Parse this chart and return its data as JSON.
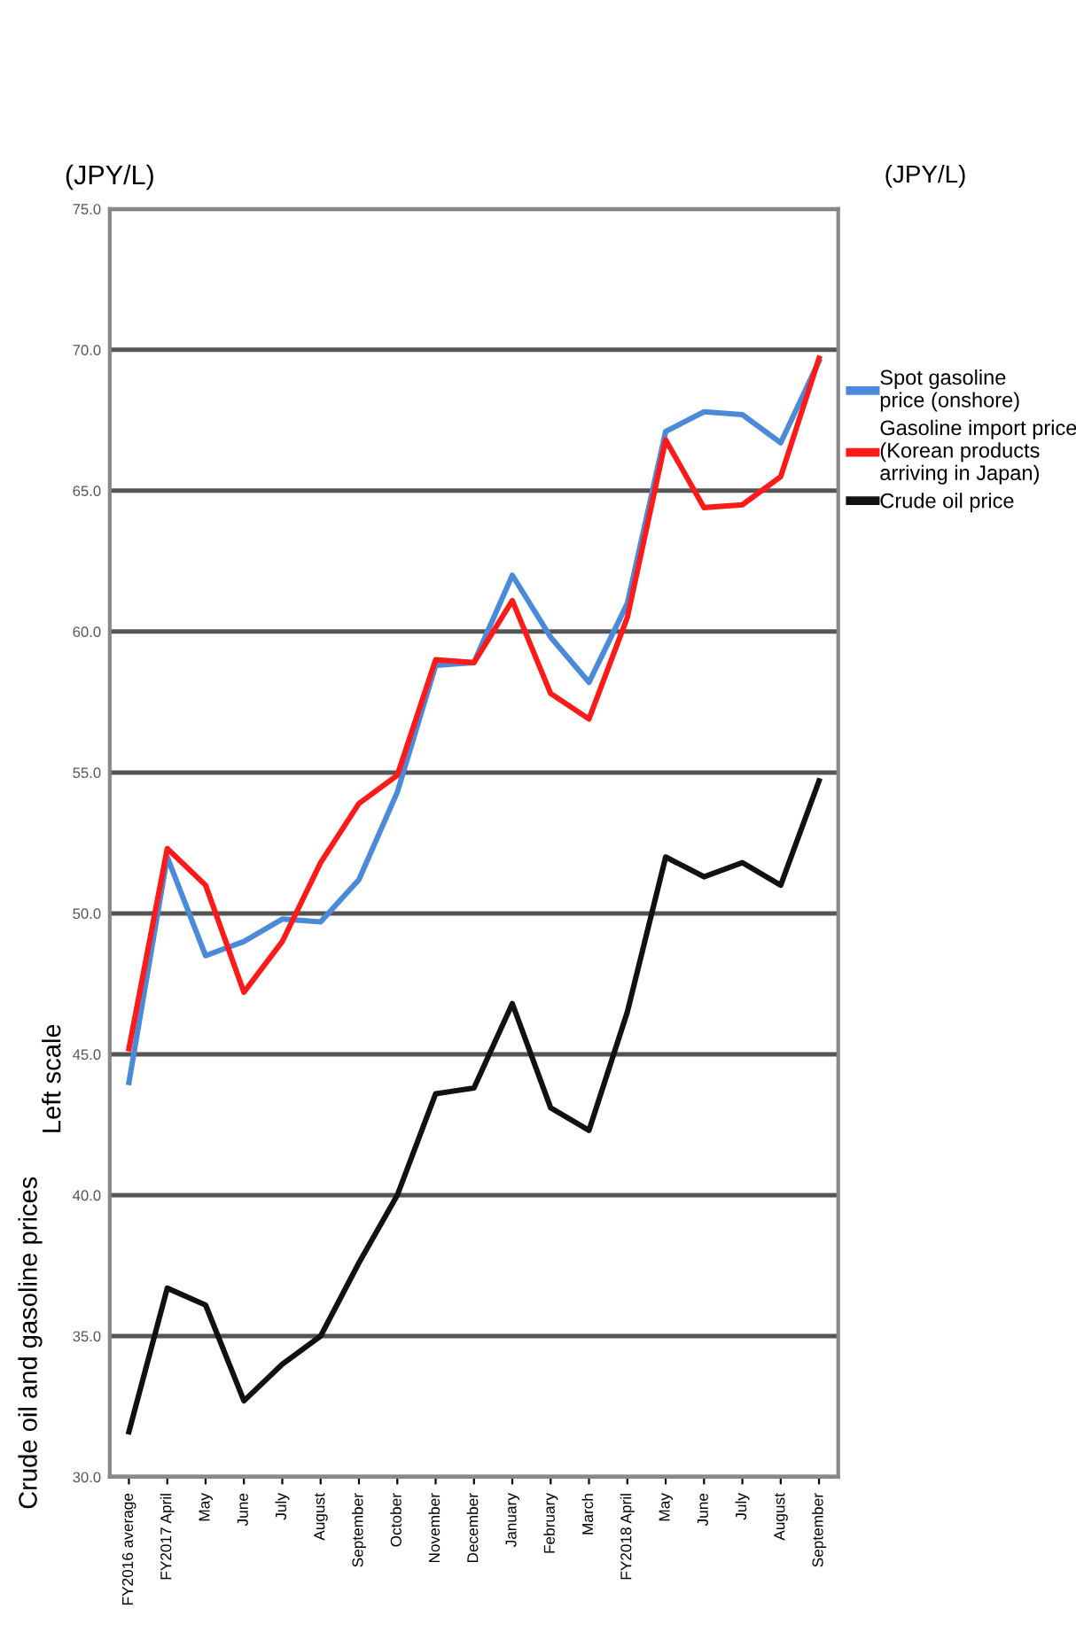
{
  "chart_data": {
    "type": "line",
    "ylabel": "(JPY/L)",
    "annotations": [
      "Crude oil and gasoline prices",
      "Left scale",
      "(JPY/L)"
    ],
    "categories": [
      "FY2016 average",
      "FY2017 April",
      "May",
      "June",
      "July",
      "August",
      "September",
      "October",
      "November",
      "December",
      "January",
      "February",
      "March",
      "FY2018 April",
      "May",
      "June",
      "July",
      "August",
      "September"
    ],
    "series": [
      {
        "name": "Spot gasoline\nprice (onshore)",
        "color": "#4a8ad8",
        "values": [
          44.0,
          52.0,
          48.5,
          49.0,
          49.8,
          49.7,
          51.2,
          54.3,
          58.8,
          58.9,
          62.0,
          59.8,
          58.2,
          61.0,
          67.1,
          67.8,
          67.7,
          66.7,
          69.6
        ]
      },
      {
        "name": "Gasoline import price\n(Korean products\narriving in Japan)",
        "color": "#ff1a1a",
        "values": [
          45.2,
          52.3,
          51.0,
          47.2,
          49.0,
          51.8,
          53.9,
          54.9,
          59.0,
          58.9,
          61.1,
          57.8,
          56.9,
          60.5,
          66.8,
          64.4,
          64.5,
          65.5,
          69.7
        ]
      },
      {
        "name": "Crude oil price",
        "color": "#111111",
        "values": [
          31.6,
          36.7,
          36.1,
          32.7,
          34.0,
          35.0,
          37.6,
          40.0,
          43.6,
          43.8,
          46.8,
          43.1,
          42.3,
          46.5,
          52.0,
          51.3,
          51.8,
          51.0,
          54.7
        ]
      }
    ],
    "ylim": [
      30,
      75
    ],
    "yticks": [
      {
        "value": 30,
        "label": "30.0"
      },
      {
        "value": 35,
        "label": "35.0"
      },
      {
        "value": 40,
        "label": "40.0"
      },
      {
        "value": 45,
        "label": "45.0"
      },
      {
        "value": 50,
        "label": "50.0"
      },
      {
        "value": 55,
        "label": "55.0"
      },
      {
        "value": 60,
        "label": "60.0"
      },
      {
        "value": 65,
        "label": "65.0"
      },
      {
        "value": 70,
        "label": "70.0"
      },
      {
        "value": 75,
        "label": "75.0"
      }
    ],
    "grid": "y",
    "legend": "right",
    "line_style": "solid",
    "marker": "none"
  }
}
